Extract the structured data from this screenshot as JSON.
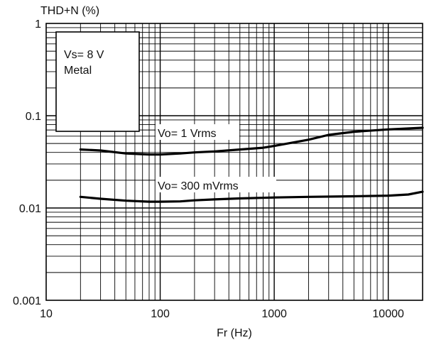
{
  "chart_data": {
    "type": "line",
    "title": "",
    "ylabel": "THD+N (%)",
    "xlabel": "Fr (Hz)",
    "x_scale": "log",
    "y_scale": "log",
    "xlim": [
      10,
      20000
    ],
    "ylim": [
      0.001,
      1
    ],
    "grid": true,
    "x_tick_labels": [
      "10",
      "100",
      "1000",
      "10000"
    ],
    "x_tick_values": [
      10,
      100,
      1000,
      10000
    ],
    "y_tick_labels": [
      "1",
      "0.1",
      "0.01",
      "0.001"
    ],
    "y_tick_values": [
      1,
      0.1,
      0.01,
      0.001
    ],
    "conditions_box": {
      "line1": "Vs= 8 V",
      "line2": "Metal"
    },
    "series": [
      {
        "name": "Vo= 1 Vrms",
        "x": [
          20,
          30,
          50,
          80,
          100,
          150,
          200,
          300,
          500,
          800,
          1000,
          2000,
          3000,
          5000,
          10000,
          20000
        ],
        "y": [
          0.043,
          0.042,
          0.039,
          0.038,
          0.038,
          0.039,
          0.04,
          0.041,
          0.043,
          0.045,
          0.047,
          0.055,
          0.062,
          0.067,
          0.071,
          0.074
        ]
      },
      {
        "name": "Vo= 300 mVrms",
        "x": [
          20,
          30,
          50,
          80,
          100,
          150,
          200,
          300,
          500,
          1000,
          2000,
          5000,
          10000,
          15000,
          20000
        ],
        "y": [
          0.0132,
          0.0126,
          0.012,
          0.0117,
          0.0117,
          0.0118,
          0.0121,
          0.0124,
          0.0127,
          0.013,
          0.0132,
          0.0134,
          0.0136,
          0.014,
          0.015
        ]
      }
    ]
  }
}
